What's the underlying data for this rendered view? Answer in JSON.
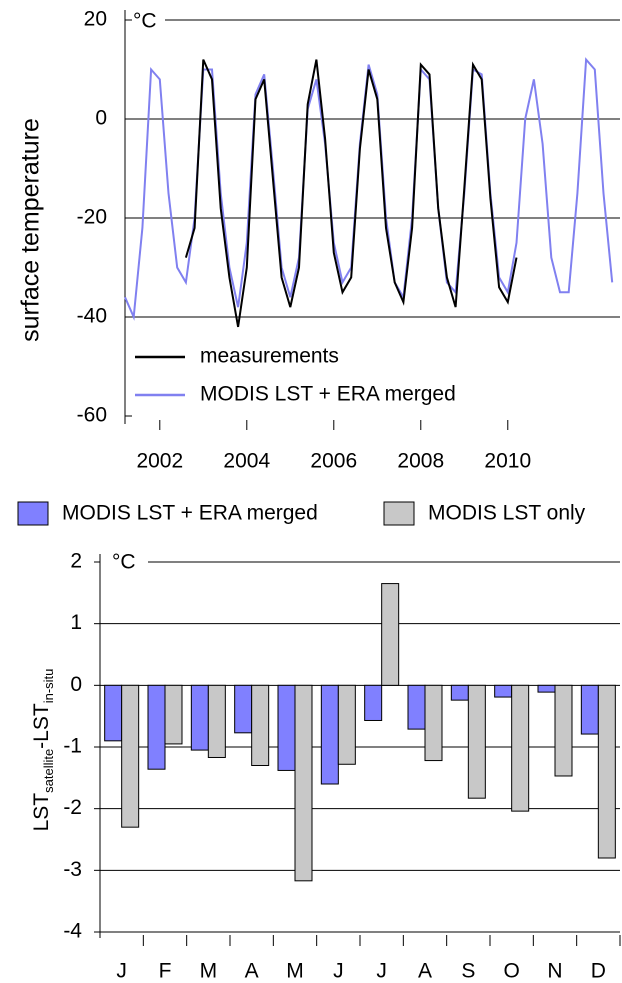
{
  "chart_data": [
    {
      "type": "line",
      "ylabel": "surface temperature",
      "unit": "°C",
      "x": [
        2001.2,
        2001.4,
        2001.6,
        2001.8,
        2002.0,
        2002.2,
        2002.4,
        2002.6,
        2002.8,
        2003.0,
        2003.2,
        2003.4,
        2003.6,
        2003.8,
        2004.0,
        2004.2,
        2004.4,
        2004.6,
        2004.8,
        2005.0,
        2005.2,
        2005.4,
        2005.6,
        2005.8,
        2006.0,
        2006.2,
        2006.4,
        2006.6,
        2006.8,
        2007.0,
        2007.2,
        2007.4,
        2007.6,
        2007.8,
        2008.0,
        2008.2,
        2008.4,
        2008.6,
        2008.8,
        2009.0,
        2009.2,
        2009.4,
        2009.6,
        2009.8,
        2010.0,
        2010.2,
        2010.4,
        2010.6,
        2010.8,
        2011.0,
        2011.2,
        2011.4,
        2011.6,
        2011.8,
        2012.0,
        2012.2,
        2012.4
      ],
      "series": [
        {
          "name": "measurements",
          "color": "#000000",
          "values": [
            null,
            null,
            null,
            null,
            null,
            null,
            null,
            -28,
            -22,
            12,
            8,
            -18,
            -32,
            -42,
            -30,
            4,
            8,
            -12,
            -32,
            -38,
            -30,
            3,
            12,
            -4,
            -27,
            -35,
            -32,
            -6,
            10,
            4,
            -22,
            -33,
            -37,
            -22,
            11,
            9,
            -18,
            -32,
            -38,
            -14,
            11,
            8,
            -16,
            -34,
            -37,
            -28,
            null,
            null,
            null,
            null,
            null,
            null,
            null,
            null,
            null,
            null,
            null
          ]
        },
        {
          "name": "MODIS LST + ERA merged",
          "color": "#8080f0",
          "values": [
            -36,
            -40,
            -22,
            10,
            8,
            -15,
            -30,
            -33,
            -20,
            10,
            10,
            -15,
            -30,
            -38,
            -25,
            5,
            9,
            -10,
            -30,
            -36,
            -28,
            2,
            8,
            -5,
            -25,
            -33,
            -30,
            -5,
            11,
            5,
            -20,
            -33,
            -36,
            -20,
            10,
            8,
            -18,
            -33,
            -35,
            -15,
            10,
            9,
            -15,
            -32,
            -35,
            -25,
            0,
            8,
            -5,
            -28,
            -35,
            -35,
            -15,
            12,
            10,
            -15,
            -33
          ]
        }
      ],
      "xlim": [
        2001.2,
        2012.58
      ],
      "xticks": [
        2002,
        2004,
        2006,
        2008,
        2010
      ],
      "ylim": [
        -60,
        20
      ],
      "yticks": [
        -60,
        -40,
        -20,
        0,
        20
      ],
      "grid": true,
      "legend": "lower left"
    },
    {
      "type": "bar",
      "ylabel": [
        "LST",
        "satellite",
        "-LST",
        "in-situ"
      ],
      "unit": "°C",
      "categories": [
        "J",
        "F",
        "M",
        "A",
        "M",
        "J",
        "J",
        "A",
        "S",
        "O",
        "N",
        "D"
      ],
      "series": [
        {
          "name": "MODIS LST + ERA merged",
          "color": "#8080ff",
          "values": [
            -0.9,
            -1.36,
            -1.05,
            -0.77,
            -1.38,
            -1.6,
            -0.57,
            -0.71,
            -0.24,
            -0.19,
            -0.11,
            -0.79
          ]
        },
        {
          "name": "MODIS LST only",
          "color": "#c8c8c8",
          "values": [
            -2.3,
            -0.95,
            -1.17,
            -1.3,
            -3.17,
            -1.28,
            1.65,
            -1.22,
            -1.83,
            -2.04,
            -1.47,
            -2.8
          ]
        }
      ],
      "ylim": [
        -4,
        2
      ],
      "yticks": [
        -4,
        -3,
        -2,
        -1,
        0,
        1,
        2
      ],
      "grid": true,
      "legend": "top"
    }
  ]
}
